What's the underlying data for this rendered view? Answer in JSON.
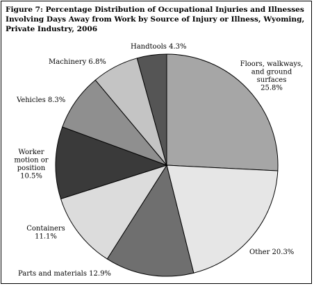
{
  "title": "Figure 7: Percentage Distribution of Occupational Injuries and Illnesses Involving Days Away from Work by Source of Injury or Illness, Wyoming, Private Industry, 2006",
  "chart_data": {
    "type": "pie",
    "title": "Figure 7: Percentage Distribution of Occupational Injuries and Illnesses Involving Days Away from Work by Source of Injury or Illness, Wyoming, Private Industry, 2006",
    "slices": [
      {
        "label": "Floors, walkways, and ground surfaces",
        "value": 25.8,
        "display": [
          "Floors, walkways,",
          "and ground",
          "surfaces",
          "25.8%"
        ],
        "color": "#a6a6a6"
      },
      {
        "label": "Other",
        "value": 20.3,
        "display": [
          "Other 20.3%"
        ],
        "color": "#e6e6e6"
      },
      {
        "label": "Parts and materials",
        "value": 12.9,
        "display": [
          "Parts and materials 12.9%"
        ],
        "color": "#6f6f6f"
      },
      {
        "label": "Containers",
        "value": 11.1,
        "display": [
          "Containers",
          "11.1%"
        ],
        "color": "#dcdcdc"
      },
      {
        "label": "Worker motion or position",
        "value": 10.5,
        "display": [
          "Worker",
          "motion or",
          "position",
          "10.5%"
        ],
        "color": "#3a3a3a"
      },
      {
        "label": "Vehicles",
        "value": 8.3,
        "display": [
          "Vehicles 8.3%"
        ],
        "color": "#8f8f8f"
      },
      {
        "label": "Machinery",
        "value": 6.8,
        "display": [
          "Machinery 6.8%"
        ],
        "color": "#c4c4c4"
      },
      {
        "label": "Handtools",
        "value": 4.3,
        "display": [
          "Handtools 4.3%"
        ],
        "color": "#555555"
      }
    ],
    "legend": "none"
  }
}
